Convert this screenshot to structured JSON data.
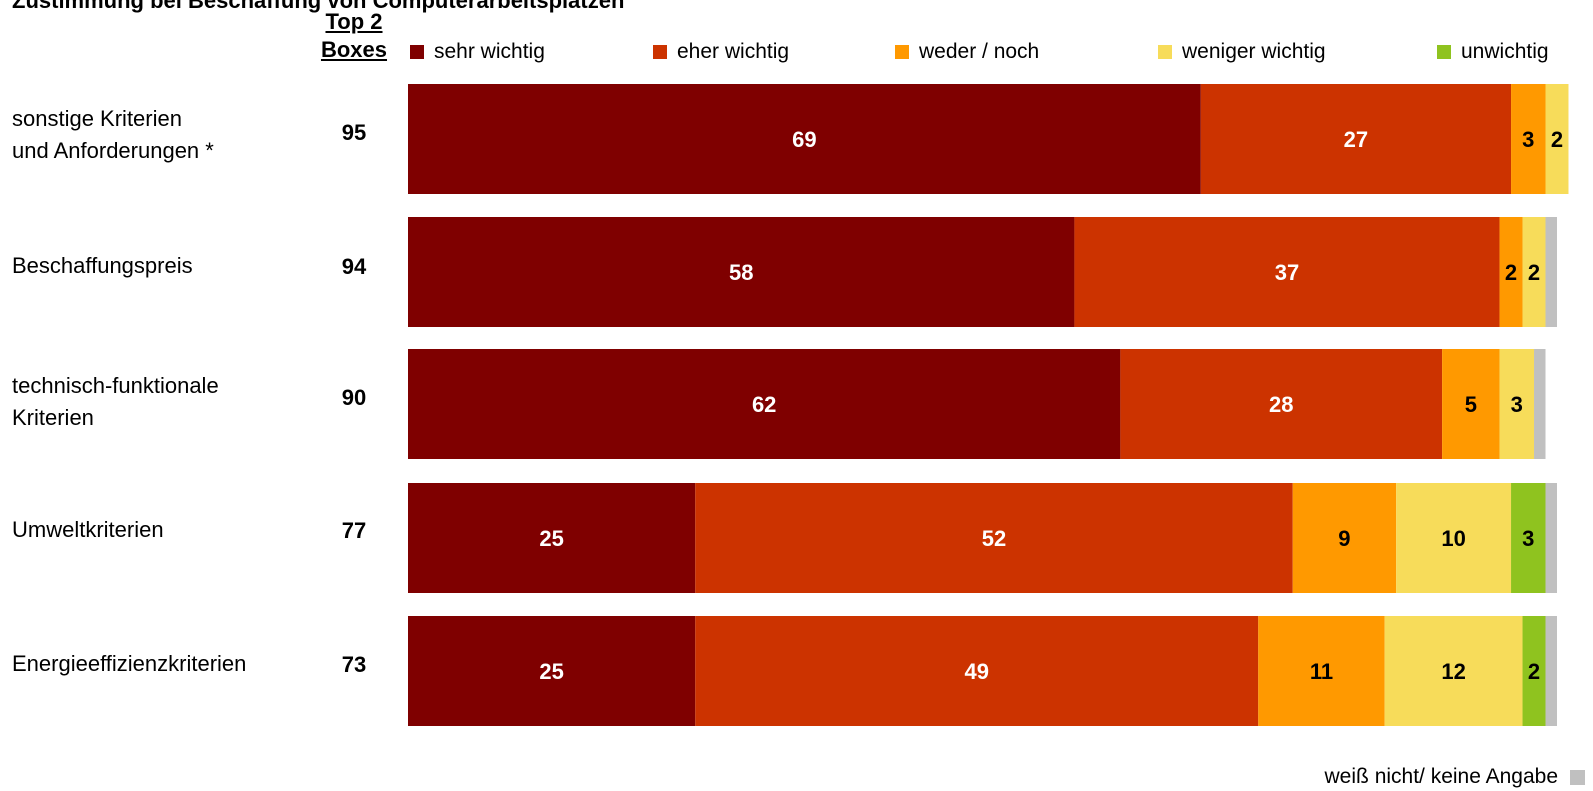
{
  "page_title": "Zustimmung bei Beschaffung von Computerarbeitsplätzen",
  "top2_header_line1": "Top 2",
  "top2_header_line2": "Boxes",
  "legend": [
    {
      "label": "sehr wichtig",
      "color": "#7f0000"
    },
    {
      "label": "eher wichtig",
      "color": "#cc3300"
    },
    {
      "label": "weder / noch",
      "color": "#ff9900"
    },
    {
      "label": "weniger wichtig",
      "color": "#f7dc5a"
    },
    {
      "label": "unwichtig",
      "color": "#8fc31f"
    }
  ],
  "na_label": "weiß nicht/ keine Angabe",
  "na_color": "#c0c0c0",
  "rows": [
    {
      "label": "sonstige Kriterien\nund Anforderungen *",
      "top2": "95"
    },
    {
      "label": "Beschaffungspreis",
      "top2": "94"
    },
    {
      "label": "technisch-funktionale\nKriterien",
      "top2": "90"
    },
    {
      "label": "Umweltkriterien",
      "top2": "77"
    },
    {
      "label": "Energieeffizienzkriterien",
      "top2": "73"
    }
  ],
  "chart_data": {
    "type": "bar",
    "orientation": "horizontal",
    "stacked": true,
    "percent": true,
    "categories": [
      "sonstige Kriterien und Anforderungen *",
      "Beschaffungspreis",
      "technisch-funktionale Kriterien",
      "Umweltkriterien",
      "Energieeffizienzkriterien"
    ],
    "series": [
      {
        "name": "sehr wichtig",
        "color": "#7f0000",
        "label_color": "#ffffff",
        "values": [
          69,
          58,
          62,
          25,
          25
        ]
      },
      {
        "name": "eher wichtig",
        "color": "#cc3300",
        "label_color": "#ffffff",
        "values": [
          27,
          37,
          28,
          52,
          49
        ]
      },
      {
        "name": "weder / noch",
        "color": "#ff9900",
        "label_color": "#000000",
        "values": [
          3,
          2,
          5,
          9,
          11
        ]
      },
      {
        "name": "weniger wichtig",
        "color": "#f7dc5a",
        "label_color": "#000000",
        "values": [
          2,
          2,
          3,
          10,
          12
        ]
      },
      {
        "name": "unwichtig",
        "color": "#8fc31f",
        "label_color": "#000000",
        "values": [
          0,
          0,
          0,
          3,
          2
        ]
      },
      {
        "name": "weiß nicht/ keine Angabe",
        "color": "#c0c0c0",
        "label_color": "#000000",
        "values": [
          0,
          1,
          1,
          1,
          1
        ]
      }
    ],
    "xlim": [
      0,
      100
    ],
    "legend_position": "top"
  }
}
